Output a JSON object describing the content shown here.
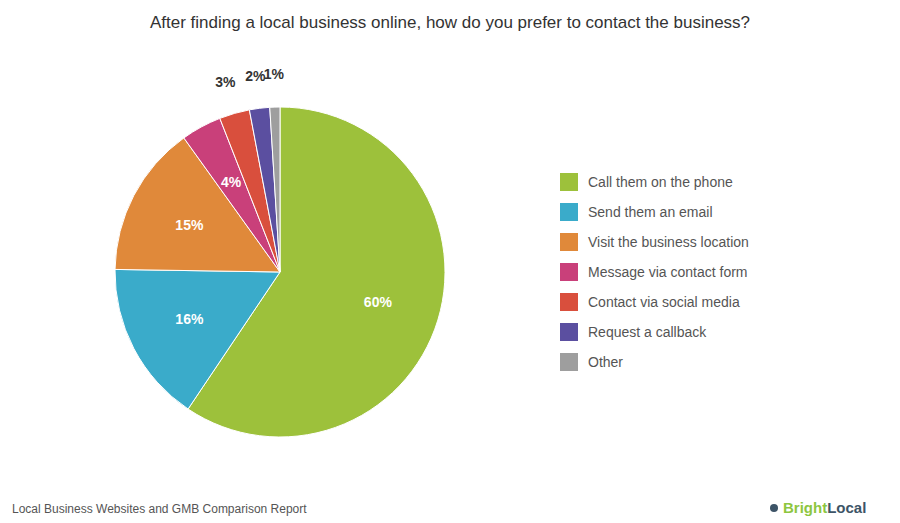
{
  "chart_data": {
    "type": "pie",
    "title": "After finding a local business online, how do you prefer to contact the business?",
    "categories": [
      "Call them on the phone",
      "Send them an email",
      "Visit the business location",
      "Message via contact form",
      "Contact via social media",
      "Request a callback",
      "Other"
    ],
    "values": [
      60,
      16,
      15,
      4,
      3,
      2,
      1
    ],
    "value_labels": [
      "60%",
      "16%",
      "15%",
      "4%",
      "3%",
      "2%",
      "1%"
    ],
    "colors": [
      "#9dc13b",
      "#3aabca",
      "#e0893a",
      "#c9407a",
      "#d94f3d",
      "#5b4fa0",
      "#9e9e9e"
    ],
    "data_labels": true,
    "legend": "right",
    "annotations": [
      {
        "text": "Local Business Websites and GMB Comparison Report"
      },
      {
        "text": "Bright",
        "color": "#8dc63f"
      },
      {
        "text": "Local",
        "color": "#3d5467"
      }
    ]
  }
}
